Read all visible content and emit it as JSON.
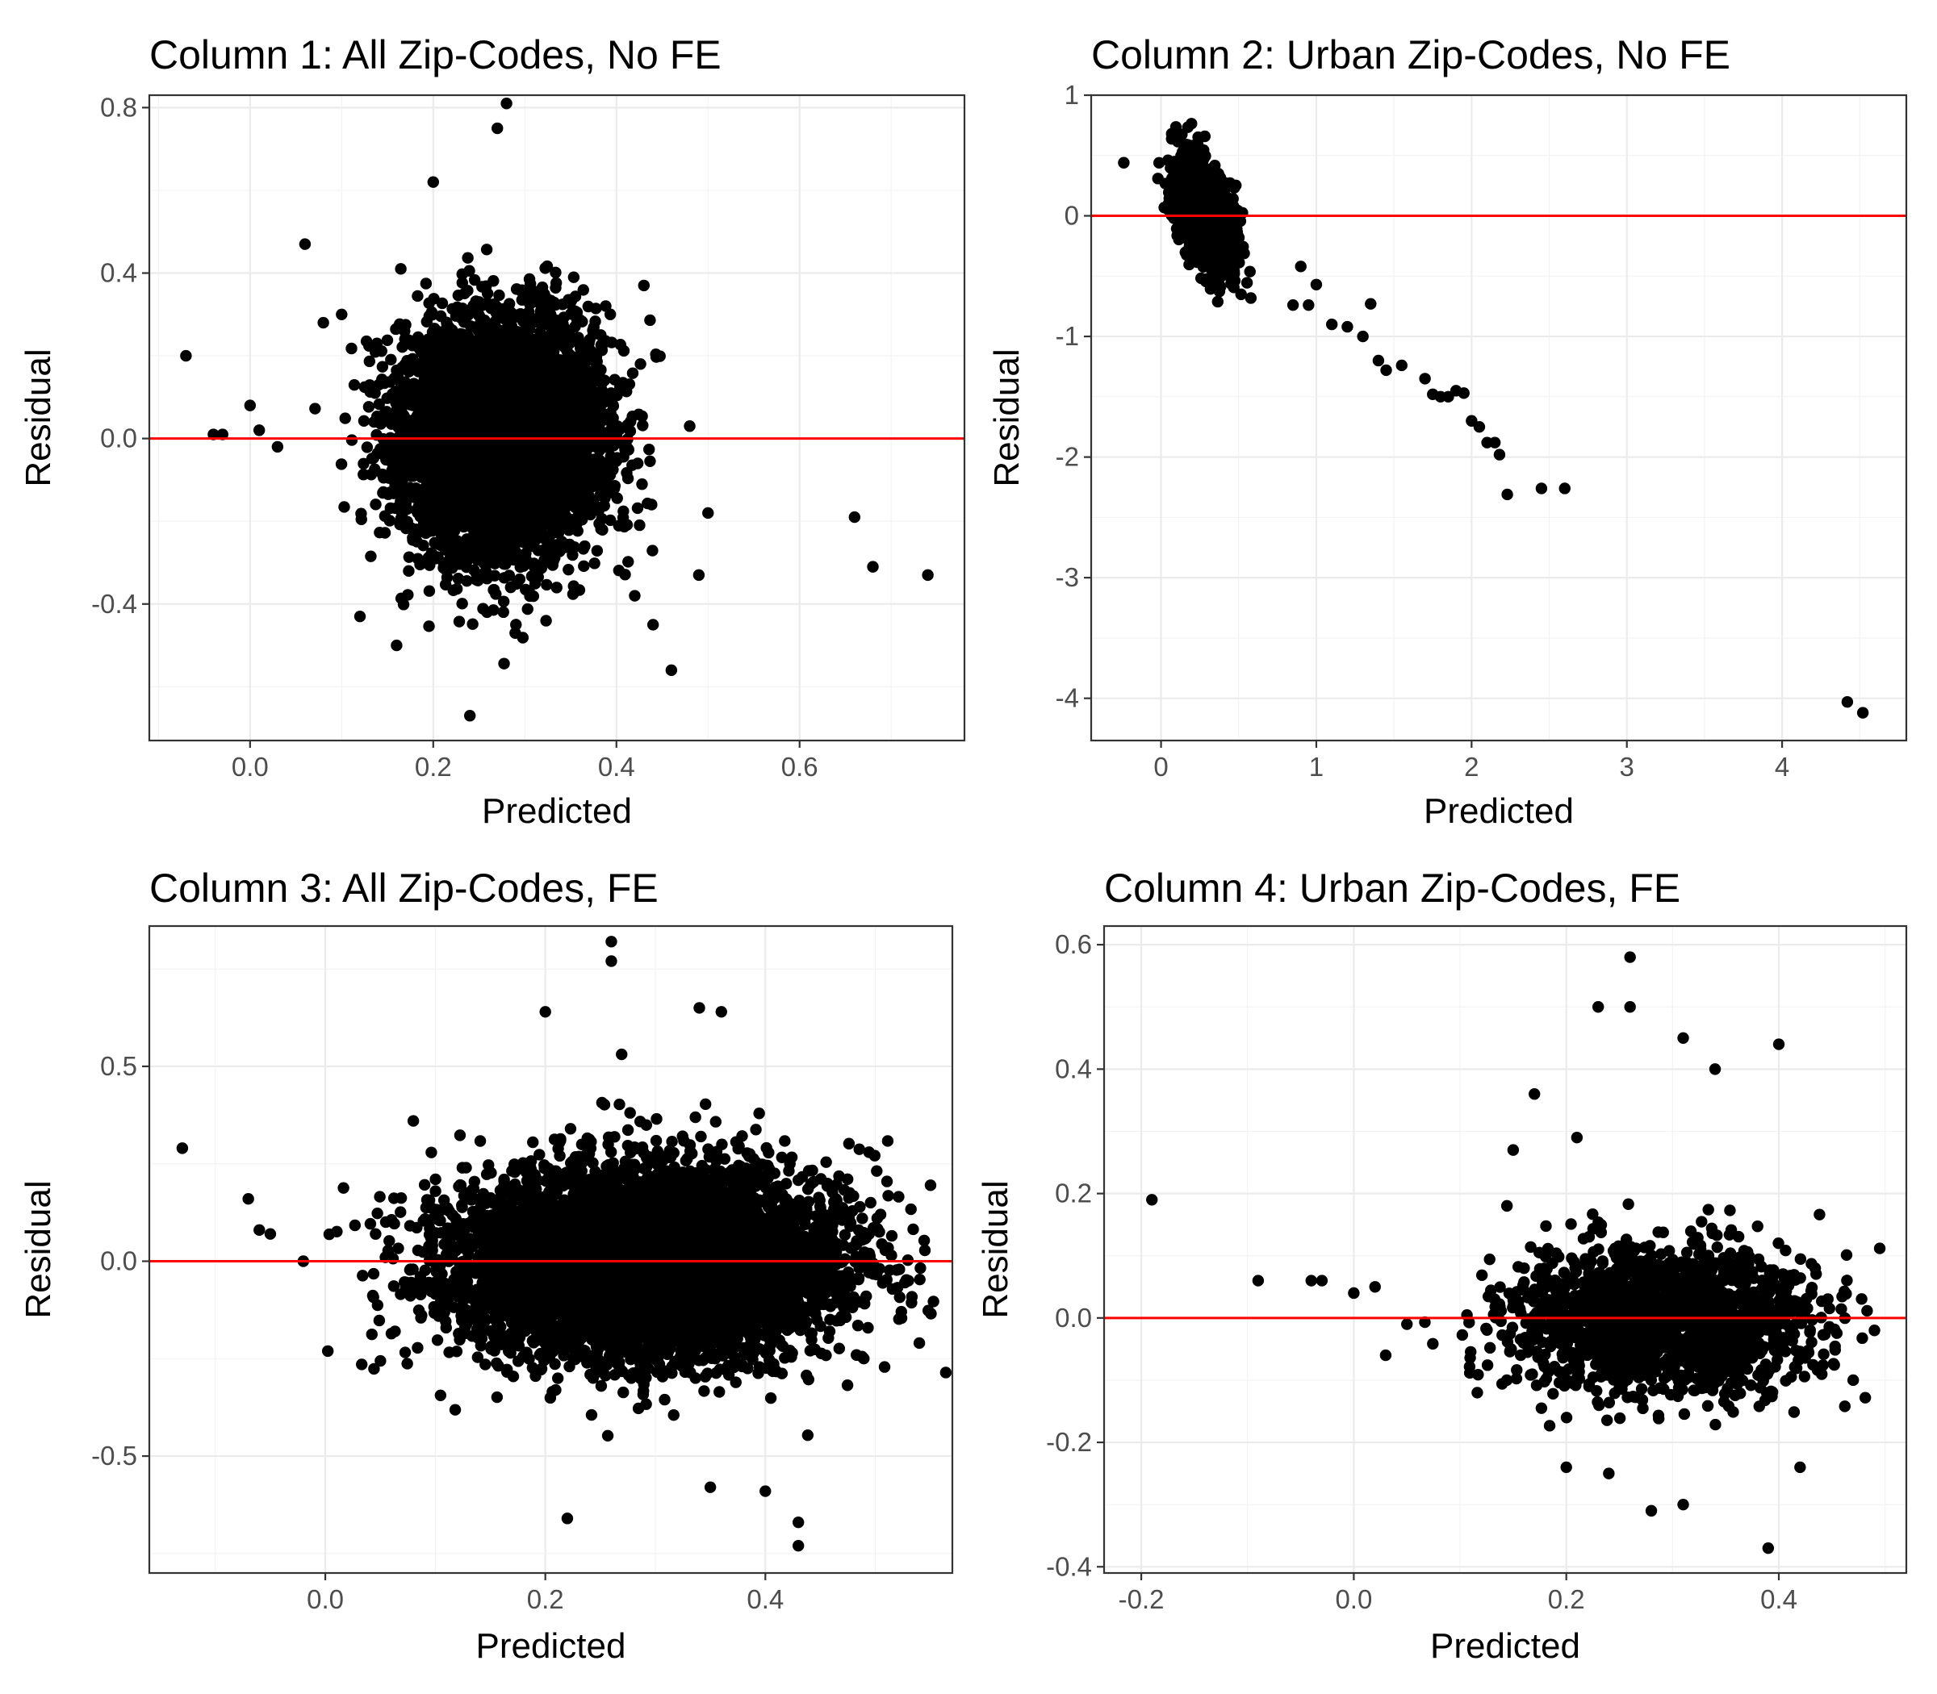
{
  "colors": {
    "reference_line": "#ff0000",
    "points": "#000000",
    "grid": "#ebebeb",
    "frame": "#333333"
  },
  "chart_data": [
    {
      "type": "scatter",
      "title": "Column 1: All Zip-Codes, No FE",
      "xlabel": "Predicted",
      "ylabel": "Residual",
      "xlim": [
        -0.11,
        0.78
      ],
      "ylim": [
        -0.73,
        0.83
      ],
      "x_ticks": [
        0.0,
        0.2,
        0.4,
        0.6
      ],
      "x_tick_labels": [
        "0.0",
        "0.2",
        "0.4",
        "0.6"
      ],
      "y_ticks": [
        -0.4,
        0.0,
        0.4,
        0.8
      ],
      "y_tick_labels": [
        "-0.4",
        "0.0",
        "0.4",
        "0.8"
      ],
      "reference_line_y": 0,
      "grid": true,
      "cloud": {
        "x_mean": 0.275,
        "x_sd": 0.055,
        "y_mean": 0.0,
        "y_sd": 0.14,
        "n": 5200
      },
      "points": [
        [
          -0.07,
          0.2
        ],
        [
          -0.04,
          0.01
        ],
        [
          -0.03,
          0.01
        ],
        [
          0.0,
          0.08
        ],
        [
          0.06,
          0.47
        ],
        [
          0.66,
          -0.19
        ],
        [
          0.68,
          -0.31
        ],
        [
          0.74,
          -0.33
        ],
        [
          0.5,
          -0.18
        ],
        [
          0.46,
          -0.56
        ],
        [
          0.28,
          0.81
        ],
        [
          0.24,
          -0.67
        ],
        [
          0.12,
          -0.43
        ],
        [
          0.16,
          -0.5
        ],
        [
          0.48,
          0.03
        ],
        [
          0.1,
          0.3
        ],
        [
          0.08,
          0.28
        ],
        [
          0.43,
          0.37
        ],
        [
          0.27,
          0.75
        ],
        [
          0.2,
          0.62
        ],
        [
          0.49,
          -0.33
        ],
        [
          0.44,
          -0.45
        ],
        [
          0.42,
          -0.38
        ],
        [
          0.01,
          0.02
        ],
        [
          0.03,
          -0.02
        ]
      ]
    },
    {
      "type": "scatter",
      "title": "Column 2: Urban Zip-Codes, No FE",
      "xlabel": "Predicted",
      "ylabel": "Residual",
      "xlim": [
        -0.45,
        4.8
      ],
      "ylim": [
        -4.35,
        1.0
      ],
      "x_ticks": [
        0,
        1,
        2,
        3,
        4
      ],
      "x_tick_labels": [
        "0",
        "1",
        "2",
        "3",
        "4"
      ],
      "y_ticks": [
        -4,
        -3,
        -2,
        -1,
        0,
        1
      ],
      "y_tick_labels": [
        "-4",
        "-3",
        "-2",
        "-1",
        "0",
        "1"
      ],
      "reference_line_y": 0,
      "grid": true,
      "cloud": {
        "x_mean": 0.29,
        "x_sd": 0.09,
        "y_mean": 0.0,
        "y_sd": 0.2,
        "n": 1500
      },
      "points": [
        [
          -0.24,
          0.44
        ],
        [
          0.9,
          -0.42
        ],
        [
          1.0,
          -0.57
        ],
        [
          0.85,
          -0.74
        ],
        [
          0.95,
          -0.74
        ],
        [
          1.1,
          -0.9
        ],
        [
          1.2,
          -0.92
        ],
        [
          1.3,
          -1.0
        ],
        [
          1.35,
          -0.73
        ],
        [
          1.4,
          -1.2
        ],
        [
          1.45,
          -1.28
        ],
        [
          1.55,
          -1.24
        ],
        [
          1.7,
          -1.35
        ],
        [
          1.75,
          -1.48
        ],
        [
          1.8,
          -1.5
        ],
        [
          1.85,
          -1.5
        ],
        [
          1.9,
          -1.45
        ],
        [
          1.95,
          -1.47
        ],
        [
          2.0,
          -1.7
        ],
        [
          2.05,
          -1.75
        ],
        [
          2.1,
          -1.88
        ],
        [
          2.15,
          -1.88
        ],
        [
          2.18,
          -1.98
        ],
        [
          2.23,
          -2.31
        ],
        [
          2.45,
          -2.26
        ],
        [
          2.6,
          -2.26
        ],
        [
          4.42,
          -4.03
        ],
        [
          4.52,
          -4.12
        ]
      ]
    },
    {
      "type": "scatter",
      "title": "Column 3: All Zip-Codes, FE",
      "xlabel": "Predicted",
      "ylabel": "Residual",
      "xlim": [
        -0.16,
        0.57
      ],
      "ylim": [
        -0.8,
        0.86
      ],
      "x_ticks": [
        0.0,
        0.2,
        0.4
      ],
      "x_tick_labels": [
        "0.0",
        "0.2",
        "0.4"
      ],
      "y_ticks": [
        -0.5,
        0.0,
        0.5
      ],
      "y_tick_labels": [
        "-0.5",
        "0.0",
        "0.5"
      ],
      "reference_line_y": 0,
      "grid": true,
      "cloud": {
        "x_mean": 0.29,
        "x_sd": 0.085,
        "y_mean": 0.0,
        "y_sd": 0.12,
        "n": 7000
      },
      "points": [
        [
          -0.13,
          0.29
        ],
        [
          -0.07,
          0.16
        ],
        [
          -0.06,
          0.08
        ],
        [
          -0.05,
          0.07
        ],
        [
          -0.02,
          0.0
        ],
        [
          0.26,
          0.82
        ],
        [
          0.26,
          0.77
        ],
        [
          0.22,
          -0.66
        ],
        [
          0.43,
          -0.67
        ],
        [
          0.43,
          -0.73
        ],
        [
          0.54,
          -0.21
        ],
        [
          0.53,
          -0.05
        ],
        [
          0.34,
          0.65
        ],
        [
          0.36,
          0.64
        ],
        [
          0.2,
          0.64
        ],
        [
          0.08,
          0.36
        ],
        [
          0.4,
          -0.59
        ],
        [
          0.35,
          -0.58
        ]
      ]
    },
    {
      "type": "scatter",
      "title": "Column 4: Urban Zip-Codes, FE",
      "xlabel": "Predicted",
      "ylabel": "Residual",
      "xlim": [
        -0.235,
        0.52
      ],
      "ylim": [
        -0.41,
        0.63
      ],
      "x_ticks": [
        -0.2,
        0.0,
        0.2,
        0.4
      ],
      "x_tick_labels": [
        "-0.2",
        "0.0",
        "0.2",
        "0.4"
      ],
      "y_ticks": [
        -0.4,
        -0.2,
        0.0,
        0.2,
        0.4,
        0.6
      ],
      "y_tick_labels": [
        "-0.4",
        "-0.2",
        "0.0",
        "0.2",
        "0.4",
        "0.6"
      ],
      "reference_line_y": 0,
      "grid": true,
      "cloud": {
        "x_mean": 0.29,
        "x_sd": 0.07,
        "y_mean": 0.0,
        "y_sd": 0.06,
        "n": 1700
      },
      "points": [
        [
          -0.19,
          0.19
        ],
        [
          -0.09,
          0.06
        ],
        [
          -0.04,
          0.06
        ],
        [
          -0.03,
          0.06
        ],
        [
          0.0,
          0.04
        ],
        [
          0.02,
          0.05
        ],
        [
          0.05,
          -0.01
        ],
        [
          0.03,
          -0.06
        ],
        [
          0.26,
          0.58
        ],
        [
          0.23,
          0.5
        ],
        [
          0.26,
          0.5
        ],
        [
          0.31,
          0.45
        ],
        [
          0.4,
          0.44
        ],
        [
          0.39,
          -0.37
        ],
        [
          0.28,
          -0.31
        ],
        [
          0.31,
          -0.3
        ],
        [
          0.49,
          -0.02
        ],
        [
          0.47,
          -0.1
        ],
        [
          0.2,
          -0.24
        ],
        [
          0.24,
          -0.25
        ],
        [
          0.17,
          0.36
        ],
        [
          0.15,
          0.27
        ],
        [
          0.21,
          0.29
        ],
        [
          0.34,
          0.4
        ],
        [
          0.42,
          -0.24
        ]
      ]
    }
  ]
}
